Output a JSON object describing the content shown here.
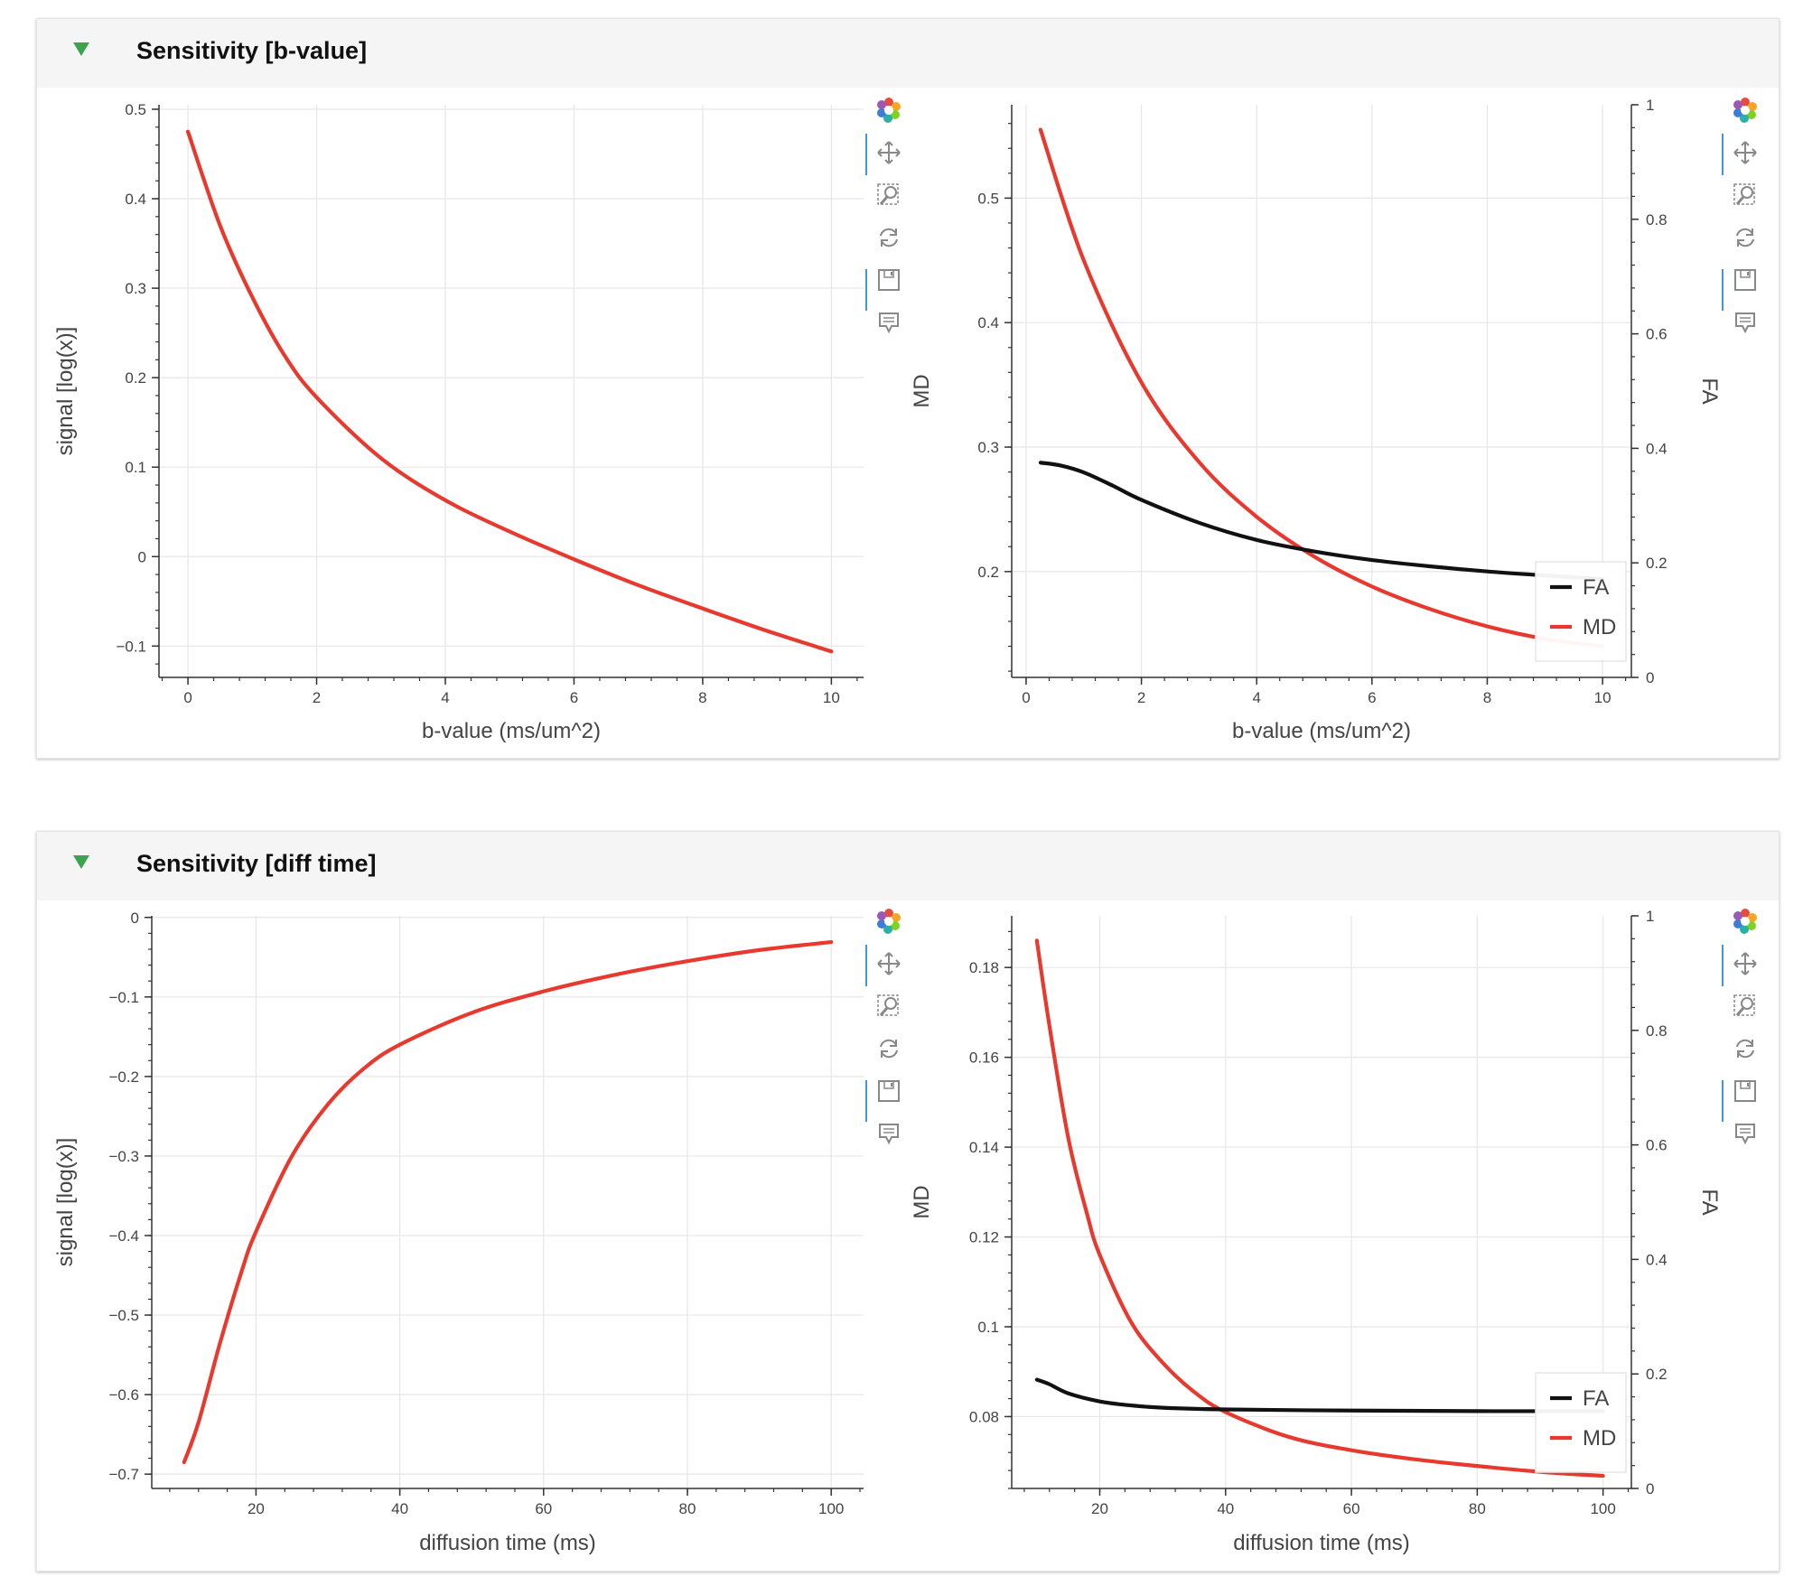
{
  "panels": [
    {
      "title": "Sensitivity [b-value]"
    },
    {
      "title": "Sensitivity [diff time]"
    }
  ],
  "colors": {
    "md": "#e8392f",
    "fa": "#111111",
    "header_bg": "#f5f5f5",
    "triangle": "#3fa34d"
  },
  "toolbar": {
    "icons": [
      "bokeh-logo-icon",
      "pan-icon",
      "box-zoom-icon",
      "reset-icon",
      "save-icon",
      "hover-icon"
    ]
  },
  "chart_data": [
    {
      "type": "line",
      "title": "",
      "xlabel": "b-value (ms/um^2)",
      "ylabel": "signal  [log(x)]",
      "xlim": [
        -0.45,
        10.5
      ],
      "ylim": [
        -0.135,
        0.505
      ],
      "xticks": [
        0,
        2,
        4,
        6,
        8,
        10
      ],
      "yticks": [
        -0.1,
        0,
        0.1,
        0.2,
        0.3,
        0.4,
        0.5
      ],
      "series": [
        {
          "name": "signal",
          "color": "#e8392f",
          "x": [
            0,
            0.5,
            1,
            1.5,
            2,
            3,
            4,
            5,
            6,
            7,
            8,
            9,
            10
          ],
          "y": [
            0.475,
            0.37,
            0.29,
            0.225,
            0.178,
            0.11,
            0.063,
            0.028,
            -0.003,
            -0.032,
            -0.058,
            -0.083,
            -0.106
          ]
        }
      ]
    },
    {
      "type": "line",
      "xlabel": "b-value (ms/um^2)",
      "ylabel": "MD",
      "y2label": "FA",
      "xlim": [
        -0.25,
        10.5
      ],
      "ylim": [
        0.115,
        0.575
      ],
      "y2lim": [
        0,
        1
      ],
      "xticks": [
        0,
        2,
        4,
        6,
        8,
        10
      ],
      "yticks": [
        0.2,
        0.3,
        0.4,
        0.5
      ],
      "y2ticks": [
        0,
        0.2,
        0.4,
        0.6,
        0.8,
        1
      ],
      "legend": {
        "location": "bottom-right",
        "items": [
          "FA",
          "MD"
        ]
      },
      "series": [
        {
          "name": "MD",
          "axis": "left",
          "color": "#e8392f",
          "x": [
            0.25,
            1,
            2,
            3,
            4,
            5,
            6,
            7,
            8,
            9,
            10
          ],
          "y": [
            0.555,
            0.45,
            0.352,
            0.288,
            0.244,
            0.212,
            0.188,
            0.17,
            0.156,
            0.146,
            0.14
          ]
        },
        {
          "name": "FA",
          "axis": "right",
          "color": "#111111",
          "x": [
            0.25,
            0.6,
            1,
            1.5,
            2,
            3,
            4,
            5,
            6,
            7,
            8,
            9,
            10
          ],
          "y": [
            0.375,
            0.37,
            0.358,
            0.335,
            0.31,
            0.27,
            0.24,
            0.22,
            0.205,
            0.194,
            0.185,
            0.178,
            0.172
          ]
        }
      ]
    },
    {
      "type": "line",
      "xlabel": "diffusion time (ms)",
      "ylabel": "signal  [log(x)]",
      "xlim": [
        5.5,
        104.5
      ],
      "ylim": [
        -0.718,
        0.002
      ],
      "xticks": [
        20,
        40,
        60,
        80,
        100
      ],
      "yticks": [
        -0.7,
        -0.6,
        -0.5,
        -0.4,
        -0.3,
        -0.2,
        -0.1,
        0
      ],
      "series": [
        {
          "name": "signal",
          "color": "#e8392f",
          "x": [
            10,
            12,
            15,
            18,
            20,
            25,
            30,
            35,
            40,
            50,
            60,
            70,
            80,
            90,
            100
          ],
          "y": [
            -0.685,
            -0.635,
            -0.535,
            -0.445,
            -0.395,
            -0.3,
            -0.235,
            -0.19,
            -0.16,
            -0.12,
            -0.093,
            -0.072,
            -0.055,
            -0.041,
            -0.031
          ]
        }
      ]
    },
    {
      "type": "line",
      "xlabel": "diffusion time (ms)",
      "ylabel": "MD",
      "y2label": "FA",
      "xlim": [
        6,
        104.5
      ],
      "ylim": [
        0.064,
        0.1915
      ],
      "y2lim": [
        0,
        1
      ],
      "xticks": [
        20,
        40,
        60,
        80,
        100
      ],
      "yticks": [
        0.08,
        0.1,
        0.12,
        0.14,
        0.16,
        0.18
      ],
      "y2ticks": [
        0,
        0.2,
        0.4,
        0.6,
        0.8,
        1
      ],
      "legend": {
        "location": "bottom-right",
        "items": [
          "FA",
          "MD"
        ]
      },
      "series": [
        {
          "name": "MD",
          "axis": "left",
          "color": "#e8392f",
          "x": [
            10,
            12,
            15,
            18,
            20,
            25,
            30,
            35,
            40,
            50,
            60,
            70,
            80,
            90,
            100
          ],
          "y": [
            0.186,
            0.167,
            0.142,
            0.125,
            0.116,
            0.101,
            0.092,
            0.0855,
            0.081,
            0.0755,
            0.0725,
            0.0705,
            0.069,
            0.0677,
            0.0668
          ]
        },
        {
          "name": "FA",
          "axis": "right",
          "color": "#111111",
          "x": [
            10,
            12,
            15,
            20,
            25,
            30,
            40,
            60,
            80,
            100
          ],
          "y": [
            0.19,
            0.182,
            0.166,
            0.152,
            0.145,
            0.141,
            0.138,
            0.136,
            0.135,
            0.135
          ]
        }
      ]
    }
  ]
}
